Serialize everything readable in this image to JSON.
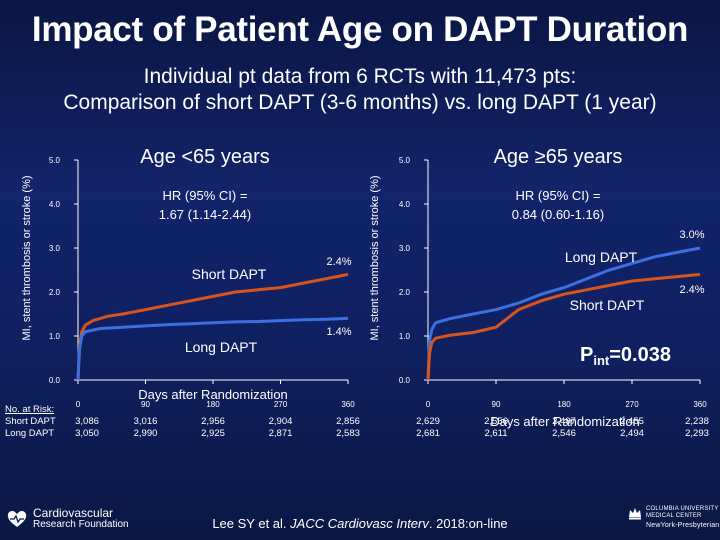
{
  "title": "Impact of Patient Age on DAPT Duration",
  "subtitle_line1": "Individual pt data from 6 RCTs with 11,473 pts:",
  "subtitle_line2": "Comparison of short DAPT (3-6 months) vs. long DAPT (1 year)",
  "colors": {
    "short_dapt": "#d9541a",
    "long_dapt": "#3d6fe0",
    "text": "#ffffff"
  },
  "chart_data": [
    {
      "type": "line",
      "title": "Age <65 years",
      "hr_line1": "HR (95% CI) =",
      "hr_line2": "1.67 (1.14-2.44)",
      "xlabel": "Days after Randomization",
      "ylabel": "MI, stent thrombosis or stroke (%)",
      "xticks": [
        "0",
        "90",
        "180",
        "270",
        "360"
      ],
      "yticks": [
        "0.0",
        "1.0",
        "2.0",
        "3.0",
        "4.0",
        "5.0"
      ],
      "xlim": [
        0,
        360
      ],
      "ylim": [
        0,
        5
      ],
      "series": [
        {
          "name": "Short DAPT",
          "end_label": "2.4%",
          "x": [
            0,
            2,
            5,
            10,
            20,
            40,
            60,
            90,
            120,
            150,
            180,
            210,
            240,
            270,
            300,
            330,
            345,
            360
          ],
          "y": [
            0,
            0.8,
            1.1,
            1.25,
            1.35,
            1.45,
            1.5,
            1.6,
            1.7,
            1.8,
            1.9,
            2.0,
            2.05,
            2.1,
            2.2,
            2.3,
            2.35,
            2.4
          ]
        },
        {
          "name": "Long DAPT",
          "end_label": "1.4%",
          "x": [
            0,
            2,
            5,
            10,
            30,
            60,
            90,
            120,
            150,
            180,
            210,
            240,
            270,
            300,
            330,
            360
          ],
          "y": [
            0,
            0.7,
            1.0,
            1.1,
            1.17,
            1.2,
            1.23,
            1.26,
            1.28,
            1.3,
            1.32,
            1.33,
            1.35,
            1.37,
            1.38,
            1.4
          ]
        }
      ],
      "at_risk": {
        "label": "No. at Risk:",
        "rows": [
          {
            "name": "Short DAPT",
            "values": [
              "3,086",
              "3,016",
              "2,956",
              "2,904",
              "2,856"
            ]
          },
          {
            "name": "Long DAPT",
            "values": [
              "3,050",
              "2,990",
              "2,925",
              "2,871",
              "2,583"
            ]
          }
        ]
      }
    },
    {
      "type": "line",
      "title": "Age ≥65 years",
      "hr_line1": "HR (95% CI) =",
      "hr_line2": "0.84 (0.60-1.16)",
      "pint": "P",
      "pint_sub": "int",
      "pint_val": "=0.038",
      "xlabel": "Days after Randomization",
      "ylabel": "MI, stent thrombosis or stroke (%)",
      "xticks": [
        "0",
        "90",
        "180",
        "270",
        "360"
      ],
      "yticks": [
        "0.0",
        "1.0",
        "2.0",
        "3.0",
        "4.0",
        "5.0"
      ],
      "xlim": [
        0,
        360
      ],
      "ylim": [
        0,
        5
      ],
      "series": [
        {
          "name": "Long DAPT",
          "end_label": "3.0%",
          "x": [
            0,
            2,
            5,
            10,
            30,
            60,
            90,
            120,
            150,
            180,
            210,
            240,
            270,
            300,
            330,
            360
          ],
          "y": [
            0,
            0.9,
            1.15,
            1.3,
            1.4,
            1.5,
            1.6,
            1.75,
            1.95,
            2.1,
            2.3,
            2.5,
            2.65,
            2.8,
            2.9,
            3.0
          ]
        },
        {
          "name": "Short DAPT",
          "end_label": "2.4%",
          "x": [
            0,
            2,
            5,
            10,
            30,
            60,
            90,
            120,
            150,
            180,
            210,
            240,
            270,
            300,
            330,
            360
          ],
          "y": [
            0,
            0.6,
            0.85,
            0.95,
            1.02,
            1.08,
            1.2,
            1.6,
            1.8,
            1.95,
            2.05,
            2.15,
            2.25,
            2.3,
            2.35,
            2.4
          ]
        }
      ],
      "at_risk": {
        "label": "",
        "rows": [
          {
            "name": "Short DAPT",
            "values": [
              "2,629",
              "2,556",
              "2,497",
              "2,455",
              "2,238"
            ]
          },
          {
            "name": "Long DAPT",
            "values": [
              "2,681",
              "2,611",
              "2,546",
              "2,494",
              "2,293"
            ]
          }
        ]
      }
    }
  ],
  "footer": {
    "citation_pre": "Lee SY et al. ",
    "citation_journal": "JACC Cardiovasc Interv",
    "citation_post": ". 2018:on-line",
    "logo_left_line1": "Cardiovascular",
    "logo_left_line2": "Research Foundation",
    "logo_right_line1": "COLUMBIA UNIVERSITY",
    "logo_right_line2": "MEDICAL CENTER",
    "logo_right_line3": "NewYork-Presbyterian"
  }
}
